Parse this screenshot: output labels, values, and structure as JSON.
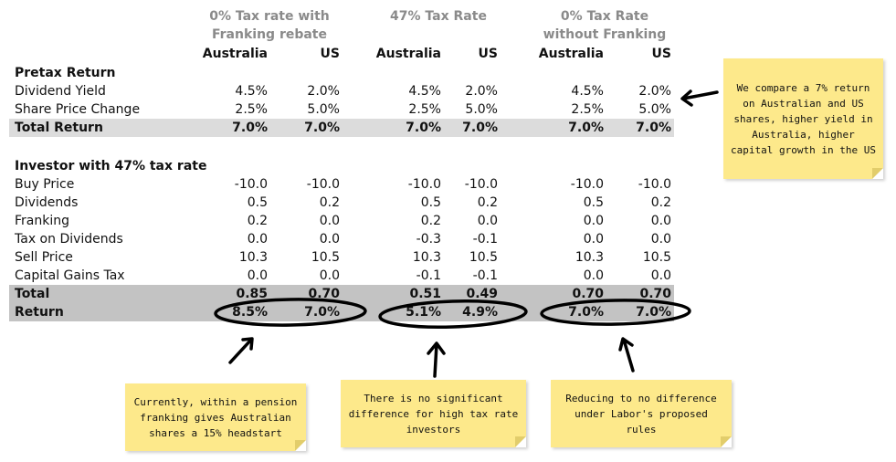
{
  "scenarios": [
    {
      "title_line1": "0% Tax rate with",
      "title_line2": "Franking rebate",
      "col_a": "Australia",
      "col_b": "US"
    },
    {
      "title_line1": "47% Tax Rate",
      "title_line2": "",
      "col_a": "Australia",
      "col_b": "US"
    },
    {
      "title_line1": "0% Tax Rate",
      "title_line2": "without Franking",
      "col_a": "Australia",
      "col_b": "US"
    }
  ],
  "pretax": {
    "heading": "Pretax Return",
    "rows": [
      {
        "label": "Dividend Yield",
        "values": [
          "4.5%",
          "2.0%",
          "4.5%",
          "2.0%",
          "4.5%",
          "2.0%"
        ]
      },
      {
        "label": "Share Price Change",
        "values": [
          "2.5%",
          "5.0%",
          "2.5%",
          "5.0%",
          "2.5%",
          "5.0%"
        ]
      },
      {
        "label": "Total Return",
        "values": [
          "7.0%",
          "7.0%",
          "7.0%",
          "7.0%",
          "7.0%",
          "7.0%"
        ]
      }
    ]
  },
  "investor": {
    "heading": "Investor with 47% tax rate",
    "rows": [
      {
        "label": "Buy Price",
        "values": [
          "-10.0",
          "-10.0",
          "-10.0",
          "-10.0",
          "-10.0",
          "-10.0"
        ]
      },
      {
        "label": "Dividends",
        "values": [
          "0.5",
          "0.2",
          "0.5",
          "0.2",
          "0.5",
          "0.2"
        ]
      },
      {
        "label": "Franking",
        "values": [
          "0.2",
          "0.0",
          "0.2",
          "0.0",
          "0.0",
          "0.0"
        ]
      },
      {
        "label": "Tax on Dividends",
        "values": [
          "0.0",
          "0.0",
          "-0.3",
          "-0.1",
          "0.0",
          "0.0"
        ]
      },
      {
        "label": "Sell Price",
        "values": [
          "10.3",
          "10.5",
          "10.3",
          "10.5",
          "10.3",
          "10.5"
        ]
      },
      {
        "label": "Capital Gains Tax",
        "values": [
          "0.0",
          "0.0",
          "-0.1",
          "-0.1",
          "0.0",
          "0.0"
        ]
      },
      {
        "label": "Total",
        "values": [
          "0.85",
          "0.70",
          "0.51",
          "0.49",
          "0.70",
          "0.70"
        ]
      },
      {
        "label": "Return",
        "values": [
          "8.5%",
          "7.0%",
          "5.1%",
          "4.9%",
          "7.0%",
          "7.0%"
        ]
      }
    ]
  },
  "notes": {
    "right": "We compare a 7% return on Australian and US shares, higher yield in Australia, higher capital growth in the US",
    "left": "Currently, within a pension franking gives Australian shares a 15% headstart",
    "middle": "There is no significant difference for high tax rate investors",
    "far": "Reducing to no difference under Labor's proposed rules"
  },
  "colors": {
    "header_grey": "#8a8a8a",
    "shade_light": "#dcdcdc",
    "shade_dark": "#c3c3c3",
    "sticky_note": "#fde98b"
  }
}
